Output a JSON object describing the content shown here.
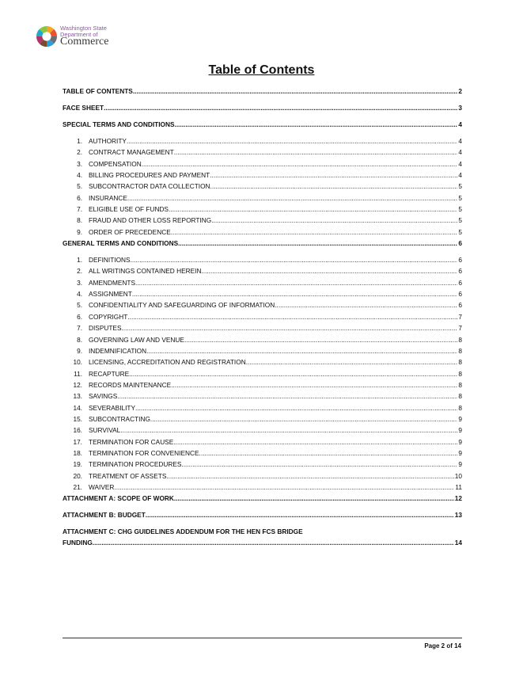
{
  "header": {
    "logo_line1": "Washington State",
    "logo_line2": "Department of",
    "logo_line3": "Commerce"
  },
  "title": "Table of Contents",
  "toc": [
    {
      "type": "main",
      "label": "TABLE OF CONTENTS",
      "page": "2"
    },
    {
      "type": "main",
      "label": "FACE SHEET",
      "page": "3"
    },
    {
      "type": "main",
      "label": "SPECIAL TERMS AND CONDITIONS",
      "page": "4"
    },
    {
      "type": "sub",
      "num": "1.",
      "label": "AUTHORITY",
      "page": "4"
    },
    {
      "type": "sub",
      "num": "2.",
      "label": "CONTRACT MANAGEMENT",
      "page": "4"
    },
    {
      "type": "sub",
      "num": "3.",
      "label": "COMPENSATION",
      "page": "4"
    },
    {
      "type": "sub",
      "num": "4.",
      "label": "BILLING PROCEDURES AND PAYMENT",
      "page": "4"
    },
    {
      "type": "sub",
      "num": "5.",
      "label": "SUBCONTRACTOR DATA COLLECTION",
      "page": "5"
    },
    {
      "type": "sub",
      "num": "6.",
      "label": "INSURANCE",
      "page": "5"
    },
    {
      "type": "sub",
      "num": "7.",
      "label": "ELIGIBLE USE OF FUNDS",
      "page": "5"
    },
    {
      "type": "sub",
      "num": "8.",
      "label": "FRAUD AND OTHER LOSS REPORTING",
      "page": "5"
    },
    {
      "type": "sub",
      "num": "9.",
      "label": "ORDER OF PRECEDENCE",
      "page": "5"
    },
    {
      "type": "main",
      "label": "GENERAL TERMS AND CONDITIONS",
      "page": "6"
    },
    {
      "type": "sub",
      "num": "1.",
      "label": "DEFINITIONS",
      "page": "6"
    },
    {
      "type": "sub",
      "num": "2.",
      "label": "ALL WRITINGS CONTAINED HEREIN",
      "page": "6"
    },
    {
      "type": "sub",
      "num": "3.",
      "label": "AMENDMENTS",
      "page": "6"
    },
    {
      "type": "sub",
      "num": "4.",
      "label": "ASSIGNMENT",
      "page": "6"
    },
    {
      "type": "sub",
      "num": "5.",
      "label": "CONFIDENTIALITY AND SAFEGUARDING OF INFORMATION",
      "page": "6"
    },
    {
      "type": "sub",
      "num": "6.",
      "label": "COPYRIGHT",
      "page": "7"
    },
    {
      "type": "sub",
      "num": "7.",
      "label": "DISPUTES",
      "page": "7"
    },
    {
      "type": "sub",
      "num": "8.",
      "label": "GOVERNING LAW AND VENUE",
      "page": "8"
    },
    {
      "type": "sub",
      "num": "9.",
      "label": "INDEMNIFICATION",
      "page": "8"
    },
    {
      "type": "sub",
      "num": "10.",
      "label": "LICENSING, ACCREDITATION AND REGISTRATION",
      "page": "8"
    },
    {
      "type": "sub",
      "num": "11.",
      "label": "RECAPTURE",
      "page": "8"
    },
    {
      "type": "sub",
      "num": "12.",
      "label": "RECORDS MAINTENANCE",
      "page": "8"
    },
    {
      "type": "sub",
      "num": "13.",
      "label": "SAVINGS",
      "page": "8"
    },
    {
      "type": "sub",
      "num": "14.",
      "label": "SEVERABILITY",
      "page": "8"
    },
    {
      "type": "sub",
      "num": "15.",
      "label": "SUBCONTRACTING",
      "page": "9"
    },
    {
      "type": "sub",
      "num": "16.",
      "label": "SURVIVAL",
      "page": "9"
    },
    {
      "type": "sub",
      "num": "17.",
      "label": "TERMINATION FOR CAUSE",
      "page": "9"
    },
    {
      "type": "sub",
      "num": "18.",
      "label": "TERMINATION FOR CONVENIENCE",
      "page": "9"
    },
    {
      "type": "sub",
      "num": "19.",
      "label": "TERMINATION PROCEDURES",
      "page": "9"
    },
    {
      "type": "sub",
      "num": "20.",
      "label": "TREATMENT OF ASSETS",
      "page": "10"
    },
    {
      "type": "sub",
      "num": "21.",
      "label": "WAIVER",
      "page": "11"
    },
    {
      "type": "main",
      "label": "ATTACHMENT A: SCOPE OF WORK",
      "page": "12"
    },
    {
      "type": "main",
      "label": "ATTACHMENT B: BUDGET",
      "page": "13"
    },
    {
      "type": "wrap",
      "label_line1": "ATTACHMENT C: CHG GUIDELINES ADDENDUM FOR THE HEN FCS BRIDGE",
      "label": "FUNDING",
      "page": "14"
    }
  ],
  "footer": {
    "page_label": "Page 2 of 14"
  }
}
